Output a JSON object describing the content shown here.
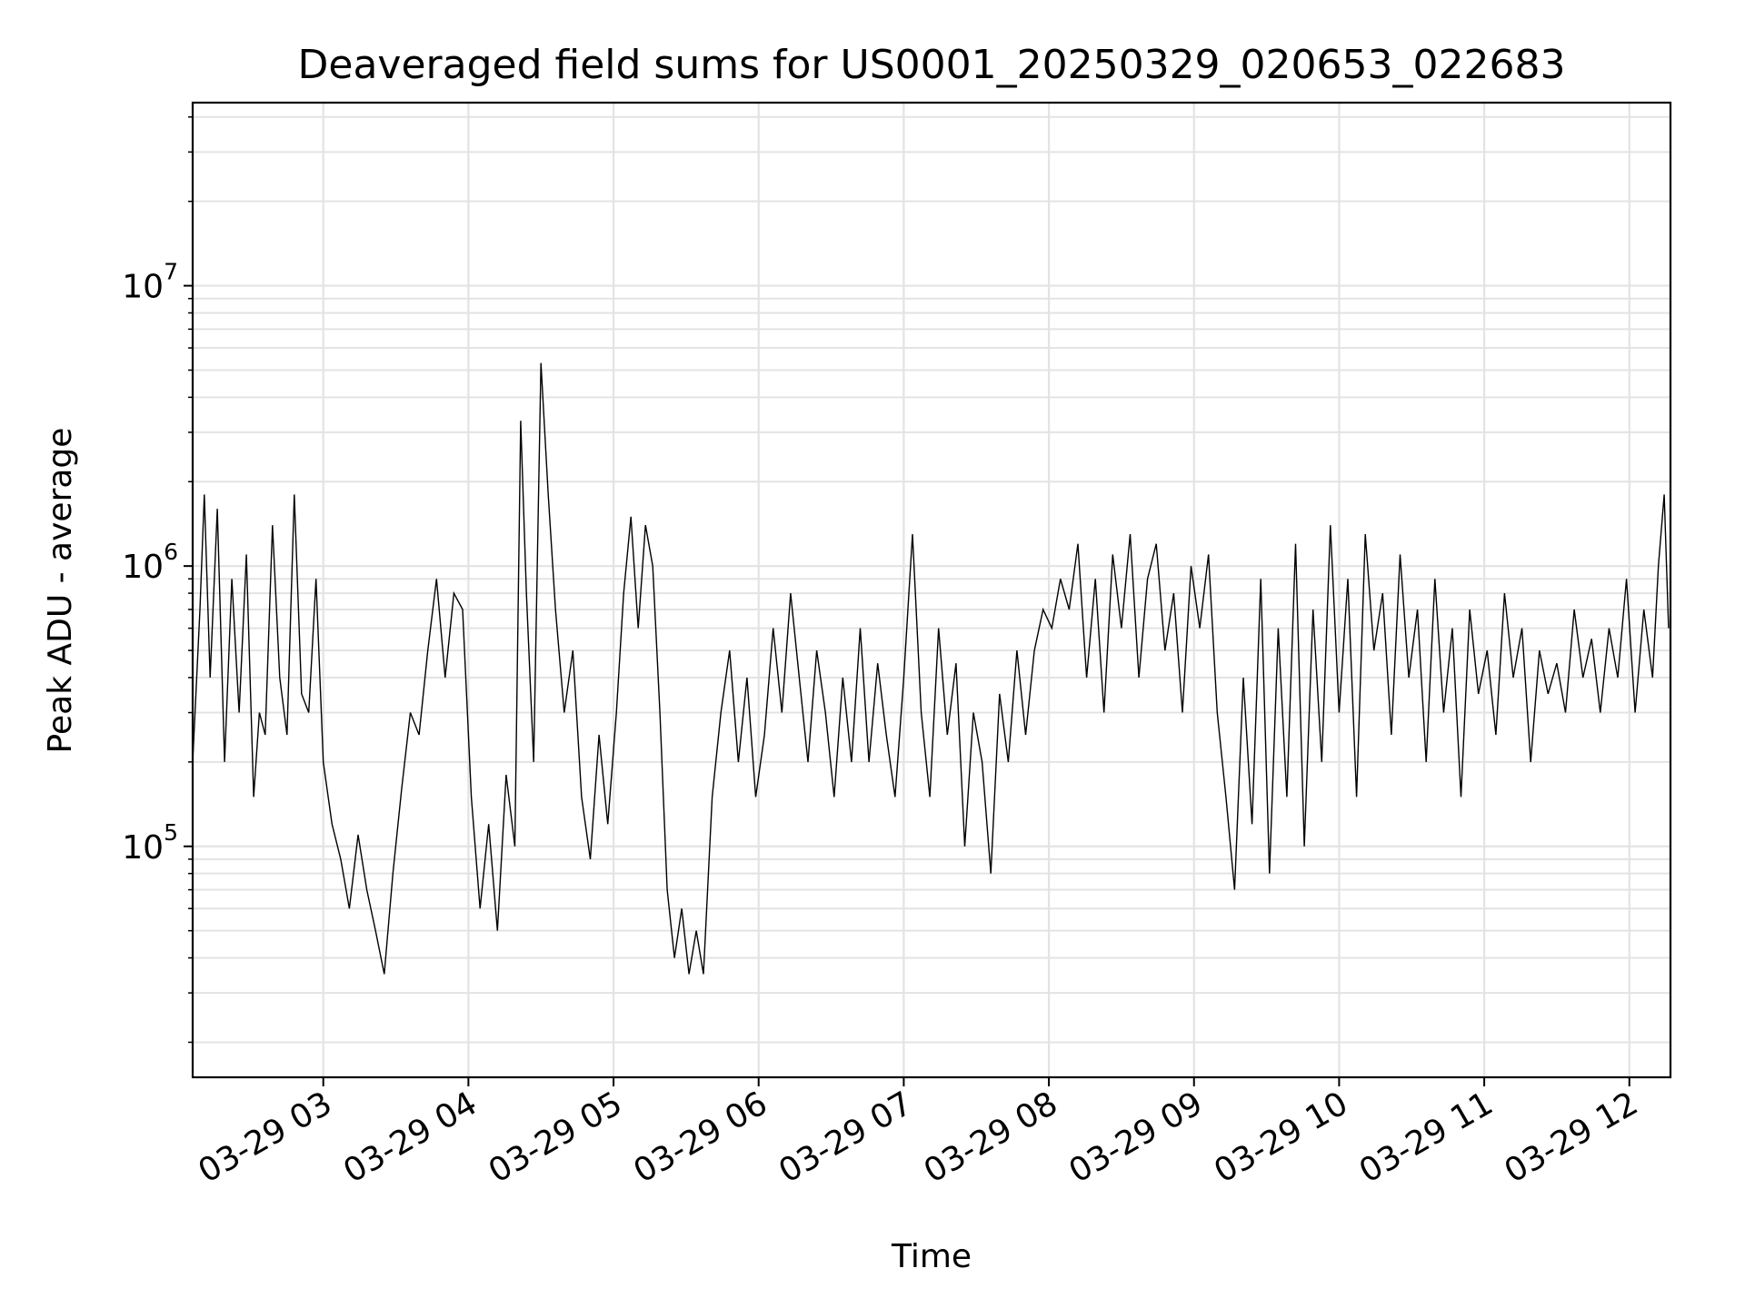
{
  "chart_data": {
    "type": "line",
    "title": "Deaveraged field sums for US0001_20250329_020653_022683",
    "xlabel": "Time",
    "ylabel": "Peak ADU - average",
    "yscale": "log",
    "ylim": [
      15000,
      45000000
    ],
    "xlim": [
      "03-29 02:06",
      "03-29 12:17"
    ],
    "x_ticks": [
      "03-29 03",
      "03-29 04",
      "03-29 05",
      "03-29 06",
      "03-29 07",
      "03-29 08",
      "03-29 09",
      "03-29 10",
      "03-29 11",
      "03-29 12"
    ],
    "y_ticks": [
      {
        "value": 100000,
        "base": "10",
        "exp": "5"
      },
      {
        "value": 1000000,
        "base": "10",
        "exp": "6"
      },
      {
        "value": 10000000,
        "base": "10",
        "exp": "7"
      }
    ],
    "grid": true,
    "line_color": "#000000",
    "x_unit": "hours since 03-29 00:00",
    "series": [
      {
        "values": [
          [
            2.1,
            200000
          ],
          [
            2.15,
            700000
          ],
          [
            2.18,
            1800000
          ],
          [
            2.22,
            400000
          ],
          [
            2.27,
            1600000
          ],
          [
            2.32,
            200000
          ],
          [
            2.37,
            900000
          ],
          [
            2.42,
            300000
          ],
          [
            2.47,
            1100000
          ],
          [
            2.52,
            150000
          ],
          [
            2.56,
            300000
          ],
          [
            2.6,
            250000
          ],
          [
            2.65,
            1400000
          ],
          [
            2.7,
            400000
          ],
          [
            2.75,
            250000
          ],
          [
            2.8,
            1800000
          ],
          [
            2.85,
            350000
          ],
          [
            2.9,
            300000
          ],
          [
            2.95,
            900000
          ],
          [
            3.0,
            200000
          ],
          [
            3.06,
            120000
          ],
          [
            3.12,
            90000
          ],
          [
            3.18,
            60000
          ],
          [
            3.24,
            110000
          ],
          [
            3.3,
            70000
          ],
          [
            3.36,
            50000
          ],
          [
            3.42,
            35000
          ],
          [
            3.48,
            80000
          ],
          [
            3.54,
            160000
          ],
          [
            3.6,
            300000
          ],
          [
            3.66,
            250000
          ],
          [
            3.72,
            500000
          ],
          [
            3.78,
            900000
          ],
          [
            3.84,
            400000
          ],
          [
            3.9,
            800000
          ],
          [
            3.96,
            700000
          ],
          [
            4.02,
            150000
          ],
          [
            4.08,
            60000
          ],
          [
            4.14,
            120000
          ],
          [
            4.2,
            50000
          ],
          [
            4.26,
            180000
          ],
          [
            4.32,
            100000
          ],
          [
            4.36,
            3300000
          ],
          [
            4.4,
            800000
          ],
          [
            4.45,
            200000
          ],
          [
            4.5,
            5300000
          ],
          [
            4.55,
            1800000
          ],
          [
            4.6,
            700000
          ],
          [
            4.66,
            300000
          ],
          [
            4.72,
            500000
          ],
          [
            4.78,
            150000
          ],
          [
            4.84,
            90000
          ],
          [
            4.9,
            250000
          ],
          [
            4.96,
            120000
          ],
          [
            5.02,
            300000
          ],
          [
            5.07,
            800000
          ],
          [
            5.12,
            1500000
          ],
          [
            5.17,
            600000
          ],
          [
            5.22,
            1400000
          ],
          [
            5.27,
            1000000
          ],
          [
            5.32,
            300000
          ],
          [
            5.37,
            70000
          ],
          [
            5.42,
            40000
          ],
          [
            5.47,
            60000
          ],
          [
            5.52,
            35000
          ],
          [
            5.57,
            50000
          ],
          [
            5.62,
            35000
          ],
          [
            5.68,
            150000
          ],
          [
            5.74,
            300000
          ],
          [
            5.8,
            500000
          ],
          [
            5.86,
            200000
          ],
          [
            5.92,
            400000
          ],
          [
            5.98,
            150000
          ],
          [
            6.04,
            250000
          ],
          [
            6.1,
            600000
          ],
          [
            6.16,
            300000
          ],
          [
            6.22,
            800000
          ],
          [
            6.28,
            400000
          ],
          [
            6.34,
            200000
          ],
          [
            6.4,
            500000
          ],
          [
            6.46,
            300000
          ],
          [
            6.52,
            150000
          ],
          [
            6.58,
            400000
          ],
          [
            6.64,
            200000
          ],
          [
            6.7,
            600000
          ],
          [
            6.76,
            200000
          ],
          [
            6.82,
            450000
          ],
          [
            6.88,
            250000
          ],
          [
            6.94,
            150000
          ],
          [
            7.0,
            400000
          ],
          [
            7.06,
            1300000
          ],
          [
            7.12,
            300000
          ],
          [
            7.18,
            150000
          ],
          [
            7.24,
            600000
          ],
          [
            7.3,
            250000
          ],
          [
            7.36,
            450000
          ],
          [
            7.42,
            100000
          ],
          [
            7.48,
            300000
          ],
          [
            7.54,
            200000
          ],
          [
            7.6,
            80000
          ],
          [
            7.66,
            350000
          ],
          [
            7.72,
            200000
          ],
          [
            7.78,
            500000
          ],
          [
            7.84,
            250000
          ],
          [
            7.9,
            500000
          ],
          [
            7.96,
            700000
          ],
          [
            8.02,
            600000
          ],
          [
            8.08,
            900000
          ],
          [
            8.14,
            700000
          ],
          [
            8.2,
            1200000
          ],
          [
            8.26,
            400000
          ],
          [
            8.32,
            900000
          ],
          [
            8.38,
            300000
          ],
          [
            8.44,
            1100000
          ],
          [
            8.5,
            600000
          ],
          [
            8.56,
            1300000
          ],
          [
            8.62,
            400000
          ],
          [
            8.68,
            900000
          ],
          [
            8.74,
            1200000
          ],
          [
            8.8,
            500000
          ],
          [
            8.86,
            800000
          ],
          [
            8.92,
            300000
          ],
          [
            8.98,
            1000000
          ],
          [
            9.04,
            600000
          ],
          [
            9.1,
            1100000
          ],
          [
            9.16,
            300000
          ],
          [
            9.22,
            150000
          ],
          [
            9.28,
            70000
          ],
          [
            9.34,
            400000
          ],
          [
            9.4,
            120000
          ],
          [
            9.46,
            900000
          ],
          [
            9.52,
            80000
          ],
          [
            9.58,
            600000
          ],
          [
            9.64,
            150000
          ],
          [
            9.7,
            1200000
          ],
          [
            9.76,
            100000
          ],
          [
            9.82,
            700000
          ],
          [
            9.88,
            200000
          ],
          [
            9.94,
            1400000
          ],
          [
            10.0,
            300000
          ],
          [
            10.06,
            900000
          ],
          [
            10.12,
            150000
          ],
          [
            10.18,
            1300000
          ],
          [
            10.24,
            500000
          ],
          [
            10.3,
            800000
          ],
          [
            10.36,
            250000
          ],
          [
            10.42,
            1100000
          ],
          [
            10.48,
            400000
          ],
          [
            10.54,
            700000
          ],
          [
            10.6,
            200000
          ],
          [
            10.66,
            900000
          ],
          [
            10.72,
            300000
          ],
          [
            10.78,
            600000
          ],
          [
            10.84,
            150000
          ],
          [
            10.9,
            700000
          ],
          [
            10.96,
            350000
          ],
          [
            11.02,
            500000
          ],
          [
            11.08,
            250000
          ],
          [
            11.14,
            800000
          ],
          [
            11.2,
            400000
          ],
          [
            11.26,
            600000
          ],
          [
            11.32,
            200000
          ],
          [
            11.38,
            500000
          ],
          [
            11.44,
            350000
          ],
          [
            11.5,
            450000
          ],
          [
            11.56,
            300000
          ],
          [
            11.62,
            700000
          ],
          [
            11.68,
            400000
          ],
          [
            11.74,
            550000
          ],
          [
            11.8,
            300000
          ],
          [
            11.86,
            600000
          ],
          [
            11.92,
            400000
          ],
          [
            11.98,
            900000
          ],
          [
            12.04,
            300000
          ],
          [
            12.1,
            700000
          ],
          [
            12.16,
            400000
          ],
          [
            12.2,
            1000000
          ],
          [
            12.24,
            1800000
          ],
          [
            12.27,
            600000
          ]
        ]
      }
    ]
  }
}
